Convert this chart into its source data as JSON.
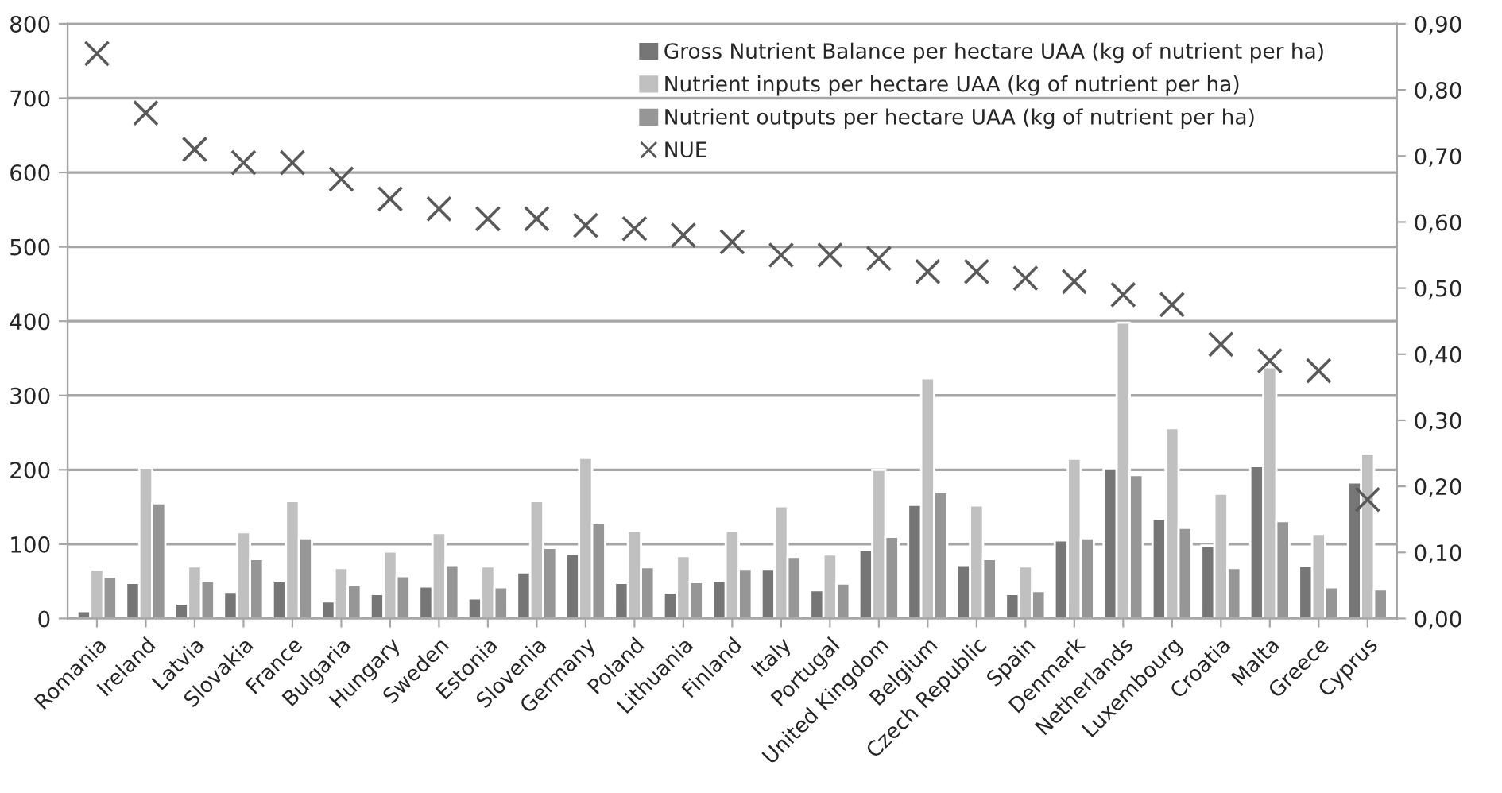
{
  "chart_data": {
    "type": "bar",
    "categories": [
      "Romania",
      "Ireland",
      "Latvia",
      "Slovakia",
      "France",
      "Bulgaria",
      "Hungary",
      "Sweden",
      "Estonia",
      "Slovenia",
      "Germany",
      "Poland",
      "Lithuania",
      "Finland",
      "Italy",
      "Portugal",
      "United Kingdom",
      "Belgium",
      "Czech Republic",
      "Spain",
      "Denmark",
      "Netherlands",
      "Luxembourg",
      "Croatia",
      "Malta",
      "Greece",
      "Cyprus"
    ],
    "series": [
      {
        "name": "Gross Nutrient Balance per hectare UAA (kg of nutrient per ha)",
        "color": "#767676",
        "values": [
          10,
          48,
          20,
          36,
          50,
          23,
          33,
          43,
          27,
          62,
          87,
          48,
          35,
          51,
          67,
          38,
          92,
          153,
          72,
          33,
          105,
          202,
          134,
          98,
          205,
          71,
          183
        ]
      },
      {
        "name": "Nutrient inputs per hectare UAA (kg of nutrient per ha)",
        "color": "#c0c0c0",
        "values": [
          66,
          203,
          70,
          116,
          158,
          68,
          90,
          115,
          70,
          158,
          216,
          118,
          84,
          118,
          151,
          86,
          200,
          323,
          152,
          70,
          215,
          398,
          256,
          168,
          338,
          114,
          222
        ]
      },
      {
        "name": "Nutrient outputs per hectare UAA (kg of nutrient per ha)",
        "color": "#969696",
        "values": [
          56,
          155,
          50,
          80,
          108,
          45,
          57,
          72,
          42,
          95,
          128,
          69,
          49,
          67,
          83,
          47,
          110,
          170,
          80,
          37,
          108,
          193,
          122,
          68,
          131,
          42,
          39
        ]
      },
      {
        "name": "NUE",
        "type": "scatter",
        "axis": "y2",
        "marker": "cross",
        "color": "#595959",
        "values": [
          0.855,
          0.765,
          0.71,
          0.69,
          0.69,
          0.665,
          0.635,
          0.62,
          0.605,
          0.605,
          0.595,
          0.59,
          0.58,
          0.57,
          0.55,
          0.55,
          0.545,
          0.525,
          0.525,
          0.515,
          0.51,
          0.49,
          0.475,
          0.415,
          0.39,
          0.375,
          0.18
        ]
      }
    ],
    "ylim": [
      0,
      800
    ],
    "yticks": [
      0,
      100,
      200,
      300,
      400,
      500,
      600,
      700,
      800
    ],
    "y2lim": [
      0,
      0.9
    ],
    "y2ticks": [
      {
        "value": 0,
        "label": "0,00"
      },
      {
        "value": 0.1,
        "label": "0,10"
      },
      {
        "value": 0.2,
        "label": "0,20"
      },
      {
        "value": 0.3,
        "label": "0,30"
      },
      {
        "value": 0.4,
        "label": "0,40"
      },
      {
        "value": 0.5,
        "label": "0,50"
      },
      {
        "value": 0.6,
        "label": "0,60"
      },
      {
        "value": 0.7,
        "label": "0,70"
      },
      {
        "value": 0.8,
        "label": "0,80"
      },
      {
        "value": 0.9,
        "label": "0,90"
      }
    ],
    "grid": "y",
    "legend": "top right"
  }
}
